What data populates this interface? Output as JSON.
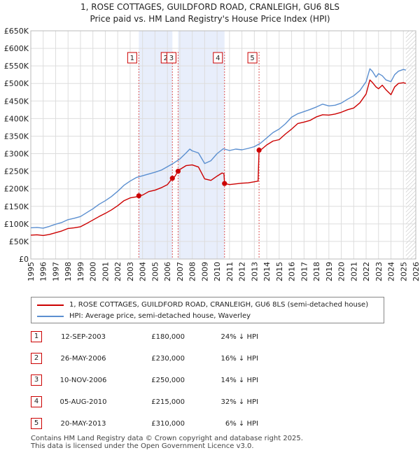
{
  "chart_data": {
    "type": "line",
    "title": "1, ROSE COTTAGES, GUILDFORD ROAD, CRANLEIGH, GU6 8LS",
    "subtitle": "Price paid vs. HM Land Registry's House Price Index (HPI)",
    "xlim": [
      1995,
      2026
    ],
    "ylim": [
      0,
      650000
    ],
    "xticks": [
      1995,
      1996,
      1997,
      1998,
      1999,
      2000,
      2001,
      2002,
      2003,
      2004,
      2005,
      2006,
      2007,
      2008,
      2009,
      2010,
      2011,
      2012,
      2013,
      2014,
      2015,
      2016,
      2017,
      2018,
      2019,
      2020,
      2021,
      2022,
      2023,
      2024,
      2025,
      2026
    ],
    "yticks": [
      {
        "value": 0,
        "label": "£0"
      },
      {
        "value": 50000,
        "label": "£50K"
      },
      {
        "value": 100000,
        "label": "£100K"
      },
      {
        "value": 150000,
        "label": "£150K"
      },
      {
        "value": 200000,
        "label": "£200K"
      },
      {
        "value": 250000,
        "label": "£250K"
      },
      {
        "value": 300000,
        "label": "£300K"
      },
      {
        "value": 350000,
        "label": "£350K"
      },
      {
        "value": 400000,
        "label": "£400K"
      },
      {
        "value": 450000,
        "label": "£450K"
      },
      {
        "value": 500000,
        "label": "£500K"
      },
      {
        "value": 550000,
        "label": "£550K"
      },
      {
        "value": 600000,
        "label": "£600K"
      },
      {
        "value": 650000,
        "label": "£650K"
      }
    ],
    "grid": true,
    "forecast_from": 2025.2,
    "series": [
      {
        "name": "1, ROSE COTTAGES, GUILDFORD ROAD, CRANLEIGH, GU6 8LS (semi-detached house)",
        "color": "#cc0000",
        "points": [
          [
            1995.0,
            68000
          ],
          [
            1995.5,
            69000
          ],
          [
            1996.0,
            67000
          ],
          [
            1996.5,
            70000
          ],
          [
            1997.0,
            75000
          ],
          [
            1997.5,
            80000
          ],
          [
            1998.0,
            87000
          ],
          [
            1998.5,
            89000
          ],
          [
            1999.0,
            92000
          ],
          [
            1999.5,
            101000
          ],
          [
            2000.0,
            111000
          ],
          [
            2000.5,
            121000
          ],
          [
            2001.0,
            130000
          ],
          [
            2001.5,
            140000
          ],
          [
            2002.0,
            152000
          ],
          [
            2002.5,
            166000
          ],
          [
            2003.0,
            174000
          ],
          [
            2003.5,
            177000
          ],
          [
            2003.7,
            180000
          ],
          [
            2004.0,
            182000
          ],
          [
            2004.5,
            192000
          ],
          [
            2005.0,
            196000
          ],
          [
            2005.5,
            203000
          ],
          [
            2006.0,
            212000
          ],
          [
            2006.4,
            230000
          ],
          [
            2006.6,
            235000
          ],
          [
            2006.86,
            250000
          ],
          [
            2007.0,
            255000
          ],
          [
            2007.5,
            266000
          ],
          [
            2008.0,
            268000
          ],
          [
            2008.5,
            262000
          ],
          [
            2009.0,
            228000
          ],
          [
            2009.5,
            224000
          ],
          [
            2010.0,
            236000
          ],
          [
            2010.4,
            245000
          ],
          [
            2010.55,
            243000
          ],
          [
            2010.6,
            215000
          ],
          [
            2011.0,
            212000
          ],
          [
            2011.5,
            214000
          ],
          [
            2012.0,
            216000
          ],
          [
            2012.5,
            217000
          ],
          [
            2013.0,
            220000
          ],
          [
            2013.3,
            222000
          ],
          [
            2013.38,
            310000
          ],
          [
            2013.6,
            313000
          ],
          [
            2014.0,
            325000
          ],
          [
            2014.5,
            336000
          ],
          [
            2015.0,
            340000
          ],
          [
            2015.5,
            356000
          ],
          [
            2016.0,
            370000
          ],
          [
            2016.5,
            386000
          ],
          [
            2017.0,
            390000
          ],
          [
            2017.5,
            395000
          ],
          [
            2018.0,
            405000
          ],
          [
            2018.5,
            411000
          ],
          [
            2019.0,
            410000
          ],
          [
            2019.5,
            413000
          ],
          [
            2020.0,
            418000
          ],
          [
            2020.5,
            425000
          ],
          [
            2021.0,
            430000
          ],
          [
            2021.5,
            445000
          ],
          [
            2022.0,
            470000
          ],
          [
            2022.3,
            510000
          ],
          [
            2022.5,
            503000
          ],
          [
            2022.8,
            490000
          ],
          [
            2023.0,
            485000
          ],
          [
            2023.3,
            495000
          ],
          [
            2023.6,
            482000
          ],
          [
            2024.0,
            468000
          ],
          [
            2024.3,
            490000
          ],
          [
            2024.6,
            500000
          ],
          [
            2025.0,
            502000
          ],
          [
            2025.2,
            500000
          ]
        ]
      },
      {
        "name": "HPI: Average price, semi-detached house, Waverley",
        "color": "#5b8fd0",
        "points": [
          [
            1995.0,
            89000
          ],
          [
            1995.5,
            90000
          ],
          [
            1996.0,
            88000
          ],
          [
            1996.5,
            93000
          ],
          [
            1997.0,
            99000
          ],
          [
            1997.5,
            104000
          ],
          [
            1998.0,
            112000
          ],
          [
            1998.5,
            116000
          ],
          [
            1999.0,
            121000
          ],
          [
            1999.5,
            132000
          ],
          [
            2000.0,
            143000
          ],
          [
            2000.5,
            156000
          ],
          [
            2001.0,
            166000
          ],
          [
            2001.5,
            178000
          ],
          [
            2002.0,
            193000
          ],
          [
            2002.5,
            210000
          ],
          [
            2003.0,
            222000
          ],
          [
            2003.5,
            232000
          ],
          [
            2004.0,
            237000
          ],
          [
            2004.5,
            242000
          ],
          [
            2005.0,
            247000
          ],
          [
            2005.5,
            253000
          ],
          [
            2006.0,
            263000
          ],
          [
            2006.5,
            273000
          ],
          [
            2007.0,
            285000
          ],
          [
            2007.5,
            302000
          ],
          [
            2007.8,
            313000
          ],
          [
            2008.0,
            308000
          ],
          [
            2008.5,
            302000
          ],
          [
            2009.0,
            272000
          ],
          [
            2009.5,
            280000
          ],
          [
            2010.0,
            300000
          ],
          [
            2010.5,
            314000
          ],
          [
            2011.0,
            309000
          ],
          [
            2011.5,
            313000
          ],
          [
            2012.0,
            311000
          ],
          [
            2012.5,
            315000
          ],
          [
            2013.0,
            320000
          ],
          [
            2013.5,
            330000
          ],
          [
            2014.0,
            345000
          ],
          [
            2014.5,
            360000
          ],
          [
            2015.0,
            370000
          ],
          [
            2015.5,
            385000
          ],
          [
            2016.0,
            404000
          ],
          [
            2016.5,
            414000
          ],
          [
            2017.0,
            420000
          ],
          [
            2017.5,
            426000
          ],
          [
            2018.0,
            433000
          ],
          [
            2018.5,
            441000
          ],
          [
            2019.0,
            436000
          ],
          [
            2019.5,
            438000
          ],
          [
            2020.0,
            444000
          ],
          [
            2020.5,
            455000
          ],
          [
            2021.0,
            465000
          ],
          [
            2021.5,
            480000
          ],
          [
            2022.0,
            505000
          ],
          [
            2022.3,
            542000
          ],
          [
            2022.5,
            535000
          ],
          [
            2022.8,
            518000
          ],
          [
            2023.0,
            528000
          ],
          [
            2023.3,
            522000
          ],
          [
            2023.6,
            510000
          ],
          [
            2024.0,
            505000
          ],
          [
            2024.3,
            525000
          ],
          [
            2024.6,
            535000
          ],
          [
            2025.0,
            540000
          ],
          [
            2025.2,
            538000
          ]
        ]
      }
    ],
    "sales": [
      {
        "id": "1",
        "x": 2003.7,
        "price": 180000
      },
      {
        "id": "2",
        "x": 2006.4,
        "price": 230000
      },
      {
        "id": "3",
        "x": 2006.86,
        "price": 250000
      },
      {
        "id": "4",
        "x": 2010.6,
        "price": 215000
      },
      {
        "id": "5",
        "x": 2013.38,
        "price": 310000
      }
    ]
  },
  "legend": {
    "property_label": "1, ROSE COTTAGES, GUILDFORD ROAD, CRANLEIGH, GU6 8LS (semi-detached house)",
    "hpi_label": "HPI: Average price, semi-detached house, Waverley",
    "property_color": "#cc0000",
    "hpi_color": "#5b8fd0"
  },
  "sales_table": [
    {
      "num": "1",
      "date": "12-SEP-2003",
      "price": "£180,000",
      "pct": "24% ↓ HPI"
    },
    {
      "num": "2",
      "date": "26-MAY-2006",
      "price": "£230,000",
      "pct": "16% ↓ HPI"
    },
    {
      "num": "3",
      "date": "10-NOV-2006",
      "price": "£250,000",
      "pct": "14% ↓ HPI"
    },
    {
      "num": "4",
      "date": "05-AUG-2010",
      "price": "£215,000",
      "pct": "32% ↓ HPI"
    },
    {
      "num": "5",
      "date": "20-MAY-2013",
      "price": "£310,000",
      "pct": "6% ↓ HPI"
    }
  ],
  "footer": {
    "line1": "Contains HM Land Registry data © Crown copyright and database right 2025.",
    "line2": "This data is licensed under the Open Government Licence v3.0."
  }
}
